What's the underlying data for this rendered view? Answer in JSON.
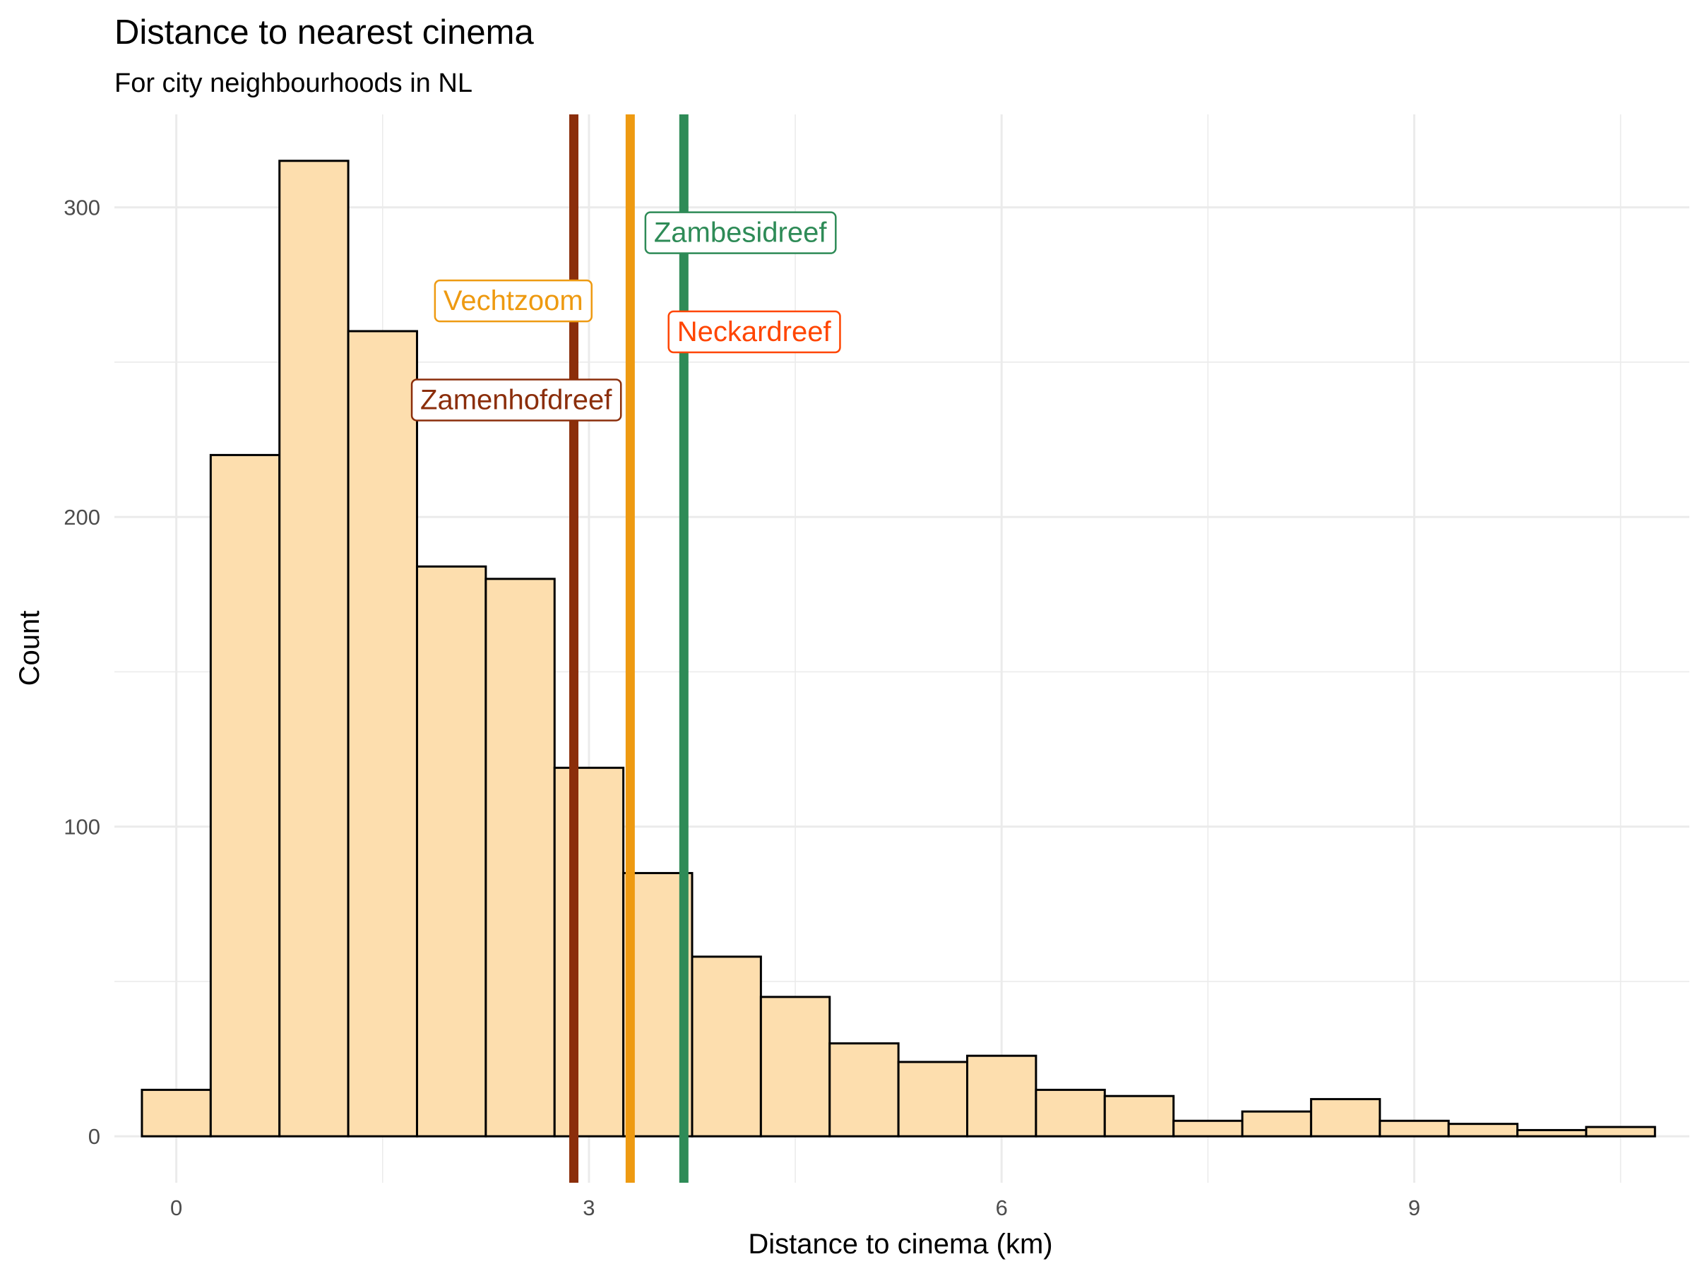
{
  "chart_data": {
    "type": "bar",
    "subtype": "histogram",
    "title": "Distance to nearest cinema",
    "subtitle": "For city neighbourhoods in NL",
    "xlabel": "Distance to cinema (km)",
    "ylabel": "Count",
    "xlim": [
      -0.45,
      11.0
    ],
    "ylim": [
      -15,
      330
    ],
    "x_ticks": [
      0,
      3,
      6,
      9
    ],
    "y_ticks": [
      0,
      100,
      200,
      300
    ],
    "grid": true,
    "bar_fill": "#FDDEAE",
    "bar_outline": "#000000",
    "bins": [
      {
        "x0": -0.25,
        "x1": 0.25,
        "count": 15
      },
      {
        "x0": 0.25,
        "x1": 0.75,
        "count": 220
      },
      {
        "x0": 0.75,
        "x1": 1.25,
        "count": 315
      },
      {
        "x0": 1.25,
        "x1": 1.75,
        "count": 260
      },
      {
        "x0": 1.75,
        "x1": 2.25,
        "count": 184
      },
      {
        "x0": 2.25,
        "x1": 2.75,
        "count": 180
      },
      {
        "x0": 2.75,
        "x1": 3.25,
        "count": 119
      },
      {
        "x0": 3.25,
        "x1": 3.75,
        "count": 85
      },
      {
        "x0": 3.75,
        "x1": 4.25,
        "count": 58
      },
      {
        "x0": 4.25,
        "x1": 4.75,
        "count": 45
      },
      {
        "x0": 4.75,
        "x1": 5.25,
        "count": 30
      },
      {
        "x0": 5.25,
        "x1": 5.75,
        "count": 24
      },
      {
        "x0": 5.75,
        "x1": 6.25,
        "count": 26
      },
      {
        "x0": 6.25,
        "x1": 6.75,
        "count": 15
      },
      {
        "x0": 6.75,
        "x1": 7.25,
        "count": 13
      },
      {
        "x0": 7.25,
        "x1": 7.75,
        "count": 5
      },
      {
        "x0": 7.75,
        "x1": 8.25,
        "count": 8
      },
      {
        "x0": 8.25,
        "x1": 8.75,
        "count": 12
      },
      {
        "x0": 8.75,
        "x1": 9.25,
        "count": 5
      },
      {
        "x0": 9.25,
        "x1": 9.75,
        "count": 4
      },
      {
        "x0": 9.75,
        "x1": 10.25,
        "count": 2
      },
      {
        "x0": 10.25,
        "x1": 10.75,
        "count": 3
      }
    ],
    "reference_lines": [
      {
        "name": "Zamenhofdreef",
        "x": 2.89,
        "color": "#8B2E0B"
      },
      {
        "name": "Vechtzoom",
        "x": 3.3,
        "color": "#EE9A11"
      },
      {
        "name": "Zambesidreef",
        "x": 3.69,
        "color": "#2E8B57"
      }
    ],
    "annotations": [
      {
        "text": "Zambesidreef",
        "x": 4.1,
        "y": 292,
        "color": "#2E8B57"
      },
      {
        "text": "Vechtzoom",
        "x": 2.45,
        "y": 270,
        "color": "#EE9A11"
      },
      {
        "text": "Neckardreef",
        "x": 4.2,
        "y": 260,
        "color": "#FF4500"
      },
      {
        "text": "Zamenhofdreef",
        "x": 2.47,
        "y": 238,
        "color": "#8B2E0B"
      }
    ]
  }
}
